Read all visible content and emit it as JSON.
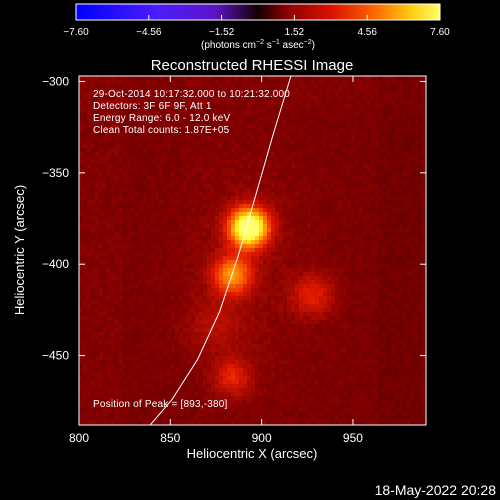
{
  "chart_data": {
    "type": "heatmap",
    "title": "Reconstructed RHESSI Image",
    "header_lines": [
      "29-Oct-2014 10:17:32.000 to 10:21:32.000",
      "Detectors: 3F 6F 9F, Att 1",
      "Energy Range: 6.0 - 12.0 keV",
      "Clean    Total counts: 1.87E+05"
    ],
    "peak_text": "Position of Peak = [893,-380]",
    "xlabel": "Heliocentric X (arcsec)",
    "ylabel": "Heliocentric Y (arcsec)",
    "xlim": [
      800,
      990
    ],
    "ylim": [
      -488,
      -297
    ],
    "xticks": [
      800,
      850,
      900,
      950
    ],
    "yticks": [
      -300,
      -350,
      -400,
      -450
    ],
    "xtick_labels": [
      "800",
      "850",
      "900",
      "950"
    ],
    "ytick_labels": [
      "−300",
      "−350",
      "−400",
      "−450"
    ],
    "colorbar": {
      "range": [
        -7.6,
        7.6
      ],
      "ticks": [
        -7.6,
        -4.56,
        -1.52,
        1.52,
        4.56,
        7.6
      ],
      "tick_labels": [
        "−7.60",
        "−4.56",
        "−1.52",
        "1.52",
        "4.56",
        "7.60"
      ],
      "label": "(photons cm",
      "label_sup1": "−2",
      "label_mid": " s",
      "label_sup2": "−1",
      "label_end": " asec",
      "label_sup3": "−2",
      "label_close": ")"
    },
    "sources": [
      {
        "x": 893,
        "y": -380,
        "amplitude": 7.6,
        "width": 7.5
      },
      {
        "x": 884,
        "y": -406,
        "amplitude": 3.8,
        "width": 7.5
      },
      {
        "x": 928,
        "y": -417,
        "amplitude": 2.0,
        "width": 8.0
      },
      {
        "x": 884,
        "y": -462,
        "amplitude": 2.0,
        "width": 7.0
      },
      {
        "x": 874,
        "y": -434,
        "amplitude": 0.9,
        "width": 10.0
      }
    ],
    "background_level": 1.2,
    "limb": {
      "description": "solar limb",
      "points": [
        [
          916,
          -297
        ],
        [
          906,
          -330
        ],
        [
          896,
          -365
        ],
        [
          887,
          -396
        ],
        [
          877,
          -426
        ],
        [
          865,
          -452
        ],
        [
          851,
          -474
        ],
        [
          839,
          -488
        ]
      ]
    }
  },
  "timestamp": "18-May-2022 20:28"
}
